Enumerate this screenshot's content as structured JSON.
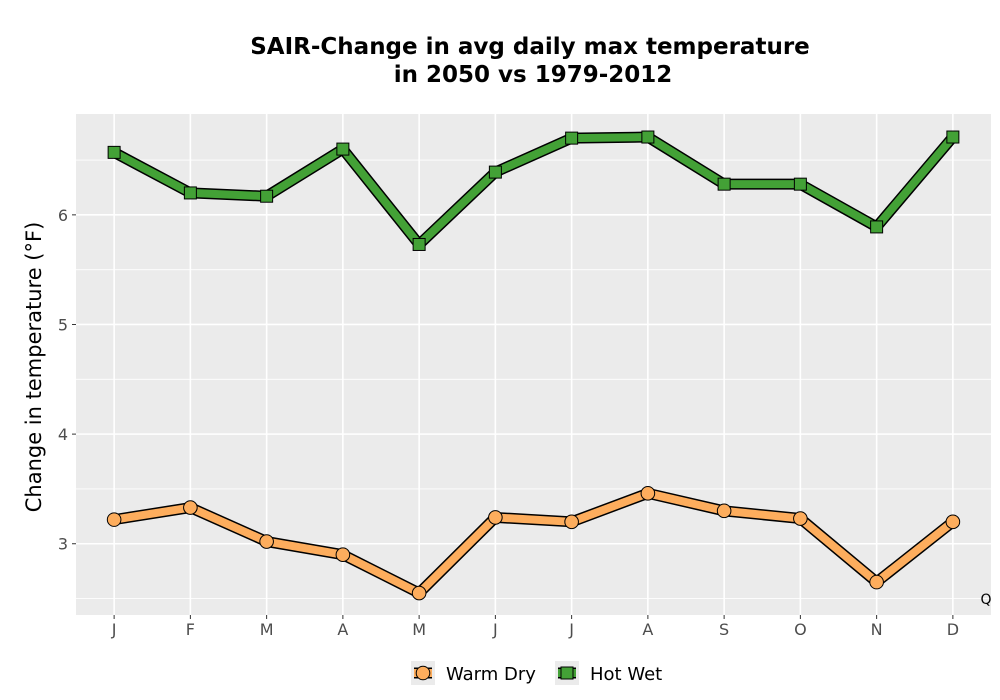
{
  "chart_data": {
    "type": "line",
    "title_lines": [
      "SAIR-Change in avg daily max temperature",
      "in 2050 vs 1979-2012"
    ],
    "xlabel": "",
    "ylabel": "Change in temperature (°F)",
    "categories": [
      "J",
      "F",
      "M",
      "A",
      "M",
      "J",
      "J",
      "A",
      "S",
      "O",
      "N",
      "D"
    ],
    "ylim": [
      2.35,
      6.92
    ],
    "y_ticks": [
      3,
      4,
      5,
      6
    ],
    "grid": true,
    "legend_position": "bottom",
    "corner_note": "Q",
    "series": [
      {
        "name": "Warm Dry",
        "marker": "circle",
        "color": "#fdad5d",
        "values": [
          3.22,
          3.33,
          3.02,
          2.9,
          2.55,
          3.24,
          3.2,
          3.46,
          3.3,
          3.23,
          2.65,
          3.2
        ]
      },
      {
        "name": "Hot Wet",
        "marker": "square",
        "color": "#43a136",
        "values": [
          6.57,
          6.2,
          6.17,
          6.6,
          5.73,
          6.39,
          6.7,
          6.71,
          6.28,
          6.28,
          5.89,
          6.71
        ]
      }
    ]
  }
}
